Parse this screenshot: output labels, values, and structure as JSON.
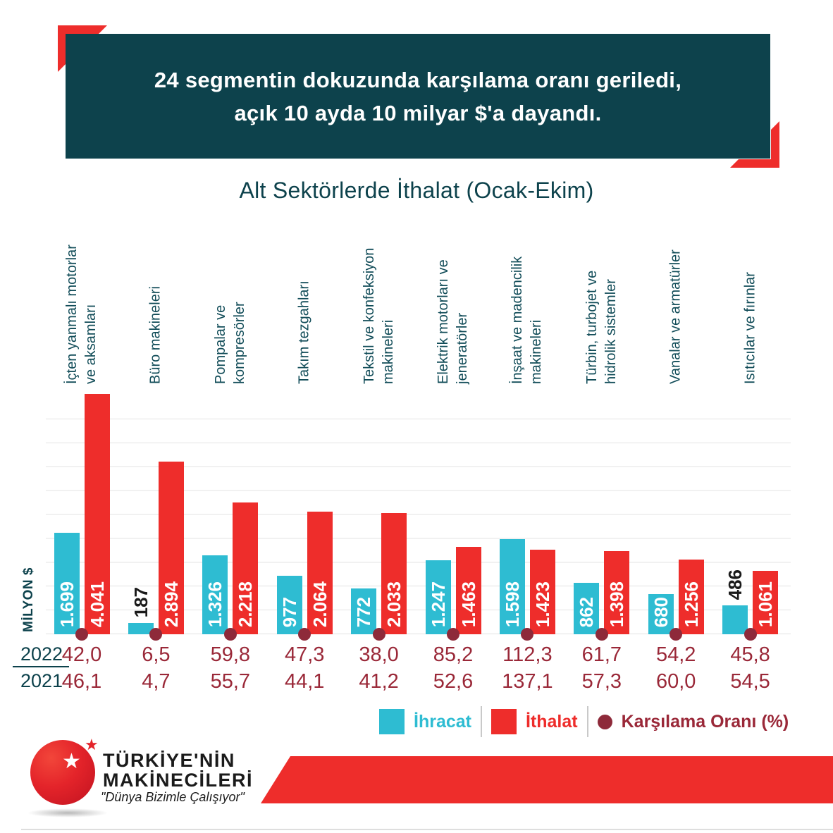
{
  "banner": {
    "line1": "24 segmentin dokuzunda karşılama oranı geriledi,",
    "line2": "açık 10 ayda 10 milyar $'a dayandı."
  },
  "title": "Alt Sektörlerde İthalat (Ocak-Ekim)",
  "colors": {
    "export_cyan": "#2ebcd2",
    "import_red": "#ee2d2b",
    "ratio_maroon": "#8e2a3a",
    "banner_teal": "#0d424c",
    "value_maroon": "#9a2838"
  },
  "chart_data": {
    "type": "bar",
    "title": "Alt Sektörlerde İthalat (Ocak-Ekim)",
    "ylabel": "MİLYON $",
    "ylim": [
      0,
      4000
    ],
    "gridline_step": 400,
    "grid": true,
    "legend_position": "bottom",
    "categories": [
      "İçten yanmalı motorlar\nve aksamları",
      "Büro makineleri",
      "Pompalar ve\nkompresörler",
      "Takım tezgahları",
      "Tekstil ve konfeksiyon\nmakineleri",
      "Elektrik motorları ve\njeneratörler",
      "İnşaat ve madencilik\nmakineleri",
      "Türbin, turbojet ve\nhidrolik sistemler",
      "Vanalar ve armatürler",
      "Isıtıcılar ve fırınlar"
    ],
    "series": [
      {
        "name": "İhracat",
        "values": [
          1699,
          187,
          1326,
          977,
          772,
          1247,
          1598,
          862,
          680,
          486
        ],
        "labels": [
          "1.699",
          "187",
          "1.326",
          "977",
          "772",
          "1.247",
          "1.598",
          "862",
          "680",
          "486"
        ]
      },
      {
        "name": "İthalat",
        "values": [
          4041,
          2894,
          2218,
          2064,
          2033,
          1463,
          1423,
          1398,
          1256,
          1061
        ],
        "labels": [
          "4.041",
          "2.894",
          "2.218",
          "2.064",
          "2.033",
          "1.463",
          "1.423",
          "1.398",
          "1.256",
          "1.061"
        ]
      }
    ],
    "coverage_ratio": {
      "row_2022_label": "2022",
      "row_2021_label": "2021",
      "values_2022": [
        "42,0",
        "6,5",
        "59,8",
        "47,3",
        "38,0",
        "85,2",
        "112,3",
        "61,7",
        "54,2",
        "45,8"
      ],
      "values_2021": [
        "46,1",
        "4,7",
        "55,7",
        "44,1",
        "41,2",
        "52,6",
        "137,1",
        "57,3",
        "60,0",
        "54,5"
      ]
    }
  },
  "legend": {
    "export_label": "İhracat",
    "import_label": "İthalat",
    "ratio_label": "Karşılama Oranı (%)"
  },
  "logo": {
    "star_icon": "★",
    "small_star_icon": "★",
    "name_line1": "TÜRKİYE'NİN",
    "name_line2": "MAKİNECİLERİ",
    "slogan": "\"Dünya Bizimle Çalışıyor\""
  }
}
